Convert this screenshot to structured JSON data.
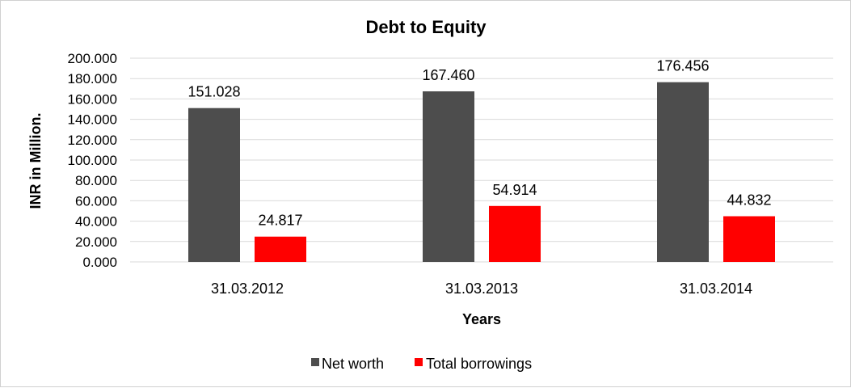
{
  "chart_data": {
    "type": "bar",
    "title": "Debt to Equity",
    "xlabel": "Years",
    "ylabel": "INR in Million.",
    "categories": [
      "31.03.2012",
      "31.03.2013",
      "31.03.2014"
    ],
    "series": [
      {
        "name": "Net worth",
        "color": "#4d4d4d",
        "values": [
          151.028,
          167.46,
          176.456
        ],
        "labels": [
          "151.028",
          "167.460",
          "176.456"
        ]
      },
      {
        "name": "Total borrowings",
        "color": "#ff0000",
        "values": [
          24.817,
          54.914,
          44.832
        ],
        "labels": [
          "24.817",
          "54.914",
          "44.832"
        ]
      }
    ],
    "ylim": [
      0,
      200
    ],
    "yticks": [
      "0.000",
      "20.000",
      "40.000",
      "60.000",
      "80.000",
      "100.000",
      "120.000",
      "140.000",
      "160.000",
      "180.000",
      "200.000"
    ],
    "grid": true,
    "legend_position": "bottom"
  }
}
